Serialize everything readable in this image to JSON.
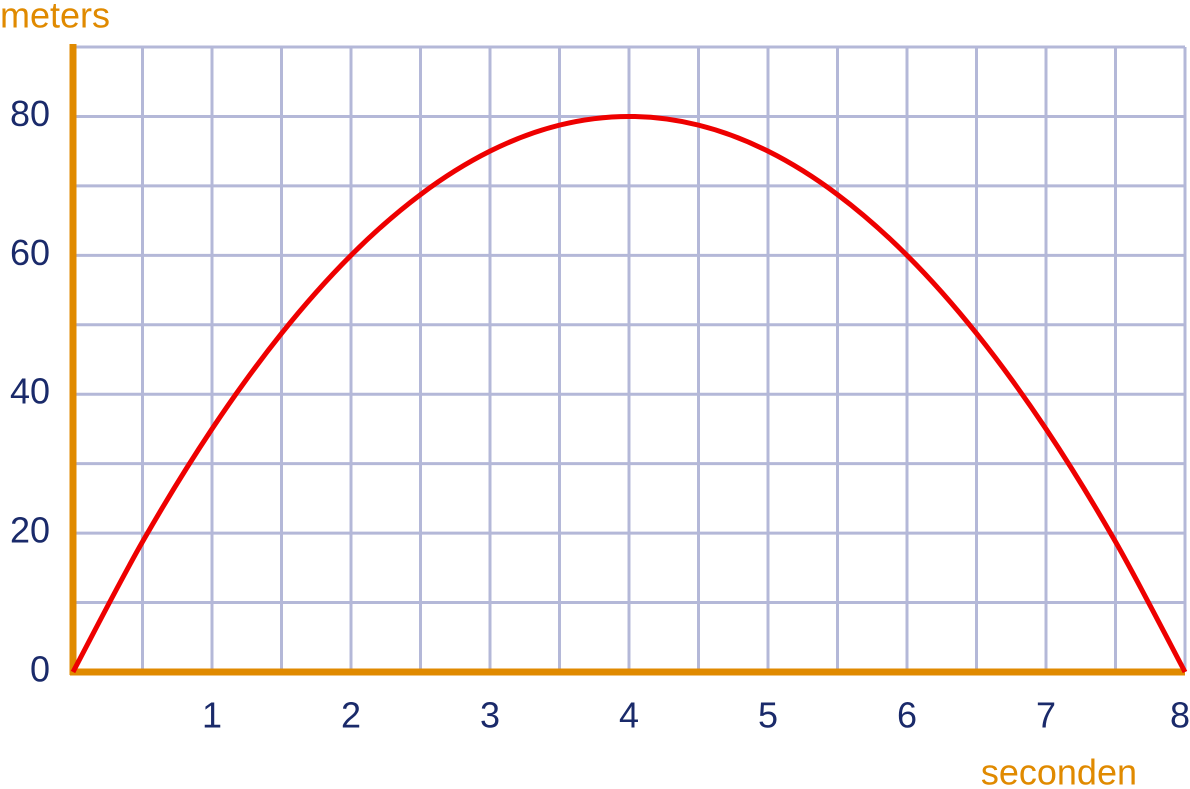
{
  "chart_data": {
    "type": "line",
    "y_label": "meters",
    "x_label": "seconden",
    "x": [
      0,
      0.5,
      1,
      1.5,
      2,
      2.5,
      3,
      3.5,
      4,
      4.5,
      5,
      5.5,
      6,
      6.5,
      7,
      7.5,
      8
    ],
    "series": [
      {
        "color": "#ee0000",
        "values": [
          0,
          18.75,
          35,
          48.75,
          60,
          68.75,
          75,
          78.75,
          80,
          78.75,
          75,
          68.75,
          60,
          48.75,
          35,
          18.75,
          0
        ]
      }
    ],
    "xlim": [
      0,
      8
    ],
    "ylim": [
      0,
      90
    ],
    "xticks": [
      1,
      2,
      3,
      4,
      5,
      6,
      7,
      8
    ],
    "yticks": [
      0,
      20,
      40,
      60,
      80
    ],
    "xgrid": [
      0.5,
      1,
      1.5,
      2,
      2.5,
      3,
      3.5,
      4,
      4.5,
      5,
      5.5,
      6,
      6.5,
      7,
      7.5,
      8
    ],
    "ygrid": [
      10,
      20,
      30,
      40,
      50,
      60,
      70,
      80,
      90
    ],
    "grid": true,
    "grid_color": "#b4b8d8",
    "axis_color": "#e08a00",
    "tick_color": "#1a2a6a"
  }
}
